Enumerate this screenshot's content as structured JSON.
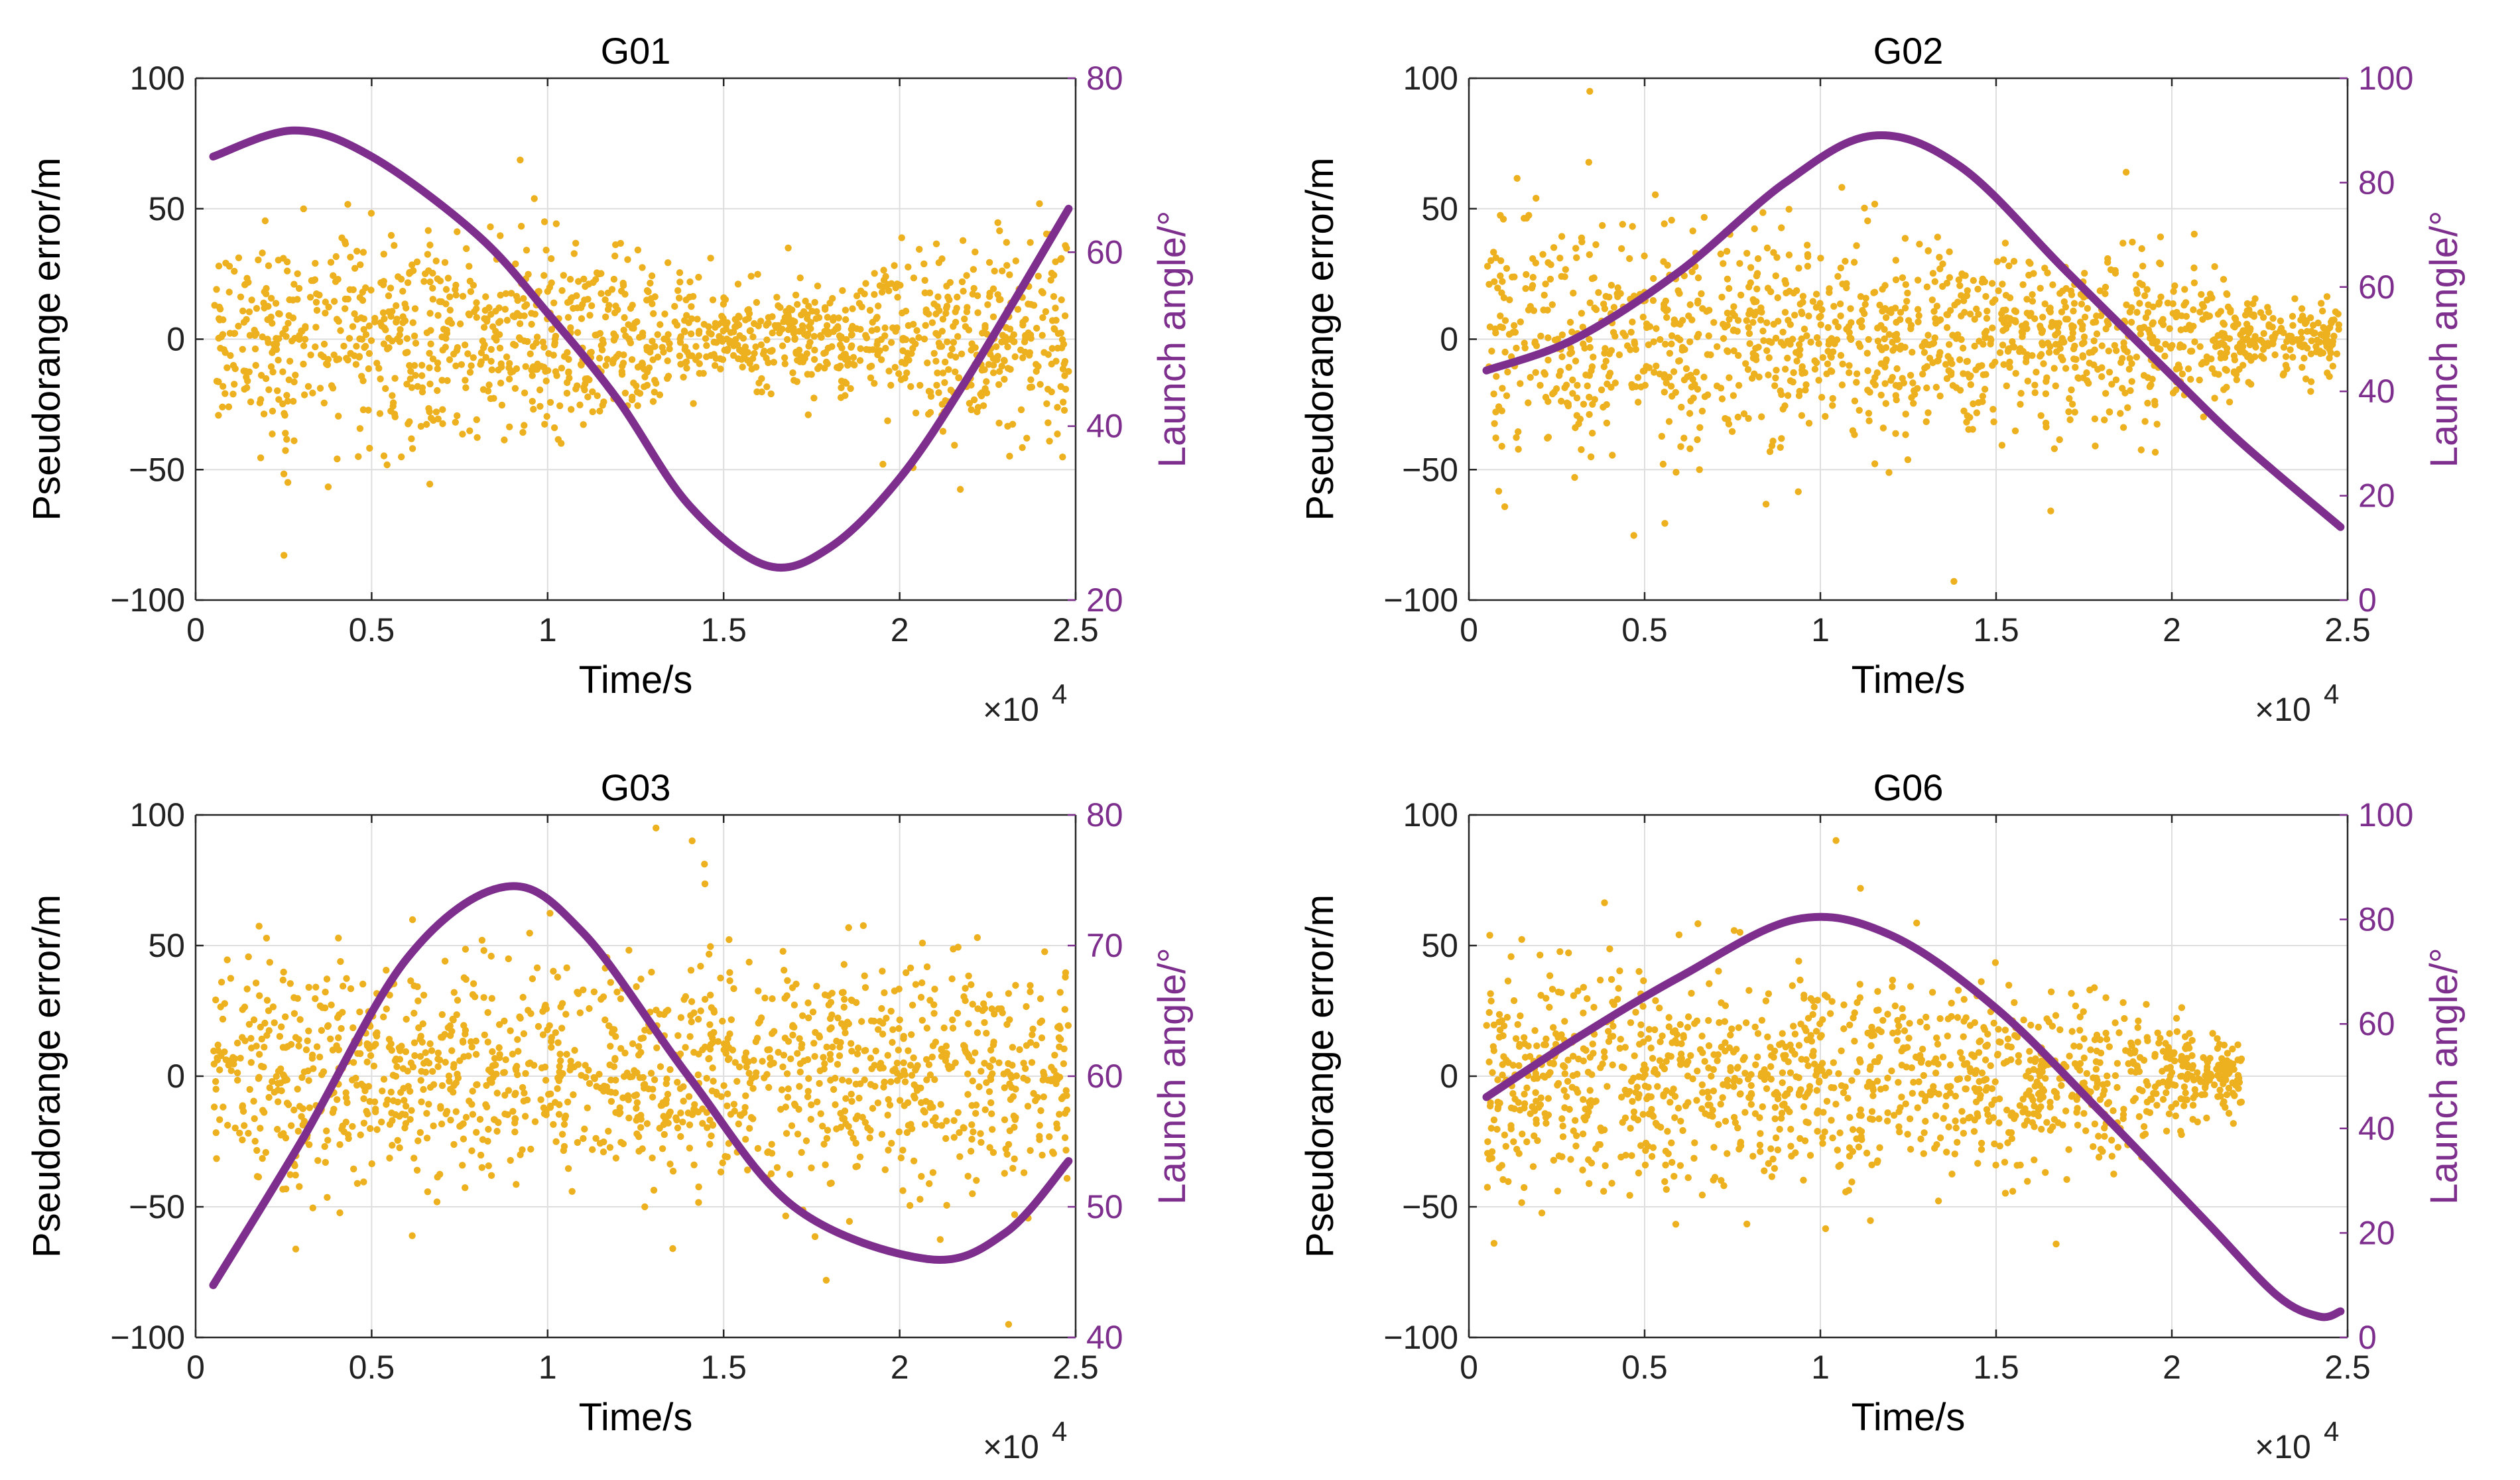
{
  "colors": {
    "scatter": "#EDB120",
    "line": "#7E2F8E",
    "right_axis": "#7E2F8E",
    "grid": "#DEDEDE",
    "axis": "#262626"
  },
  "chart_data": [
    {
      "type": "scatter",
      "title": "G01",
      "xlabel": "Time/s",
      "ylabel": "Pseudorange error/m",
      "y2label": "Launch angle/°",
      "xlim": [
        0,
        2.5
      ],
      "x_scale": "×10",
      "x_exponent": "4",
      "ylim": [
        -100,
        100
      ],
      "y2lim": [
        20,
        80
      ],
      "xticks": [
        "0",
        "0.5",
        "1",
        "1.5",
        "2",
        "2.5"
      ],
      "yticks": [
        "−100",
        "−50",
        "0",
        "50",
        "100"
      ],
      "y2ticks": [
        "20",
        "40",
        "60",
        "80"
      ],
      "grid": true,
      "series": [
        {
          "name": "Pseudorange error",
          "kind": "scatter",
          "x_range": [
            0.05,
            2.48
          ],
          "n_points": 1400,
          "spread_profile": [
            [
              0.05,
              20
            ],
            [
              0.5,
              20
            ],
            [
              0.9,
              18
            ],
            [
              1.3,
              16
            ],
            [
              1.4,
              10
            ],
            [
              1.9,
              10
            ],
            [
              2.0,
              18
            ],
            [
              2.48,
              20
            ]
          ]
        },
        {
          "name": "Launch angle",
          "kind": "line",
          "axis": "right",
          "x": [
            0.05,
            0.28,
            0.5,
            0.8,
            1.0,
            1.2,
            1.4,
            1.62,
            1.8,
            2.0,
            2.2,
            2.48
          ],
          "y": [
            71,
            74,
            71,
            62,
            53,
            43,
            31,
            24,
            26,
            34,
            46,
            65
          ]
        }
      ]
    },
    {
      "type": "scatter",
      "title": "G02",
      "xlabel": "Time/s",
      "ylabel": "Pseudorange error/m",
      "y2label": "Launch angle/°",
      "xlim": [
        0,
        2.5
      ],
      "x_scale": "×10",
      "x_exponent": "4",
      "ylim": [
        -100,
        100
      ],
      "y2lim": [
        0,
        100
      ],
      "xticks": [
        "0",
        "0.5",
        "1",
        "1.5",
        "2",
        "2.5"
      ],
      "yticks": [
        "−100",
        "−50",
        "0",
        "50",
        "100"
      ],
      "y2ticks": [
        "0",
        "20",
        "40",
        "60",
        "80",
        "100"
      ],
      "grid": true,
      "series": [
        {
          "name": "Pseudorange error",
          "kind": "scatter",
          "x_range": [
            0.05,
            2.48
          ],
          "n_points": 1400,
          "spread_profile": [
            [
              0.05,
              22
            ],
            [
              0.5,
              21
            ],
            [
              1.0,
              19
            ],
            [
              1.5,
              18
            ],
            [
              2.1,
              17
            ],
            [
              2.2,
              8
            ],
            [
              2.48,
              6
            ]
          ]
        },
        {
          "name": "Launch angle",
          "kind": "line",
          "axis": "right",
          "x": [
            0.05,
            0.3,
            0.6,
            0.9,
            1.15,
            1.4,
            1.7,
            2.0,
            2.2,
            2.48
          ],
          "y": [
            44,
            50,
            63,
            80,
            89,
            83,
            63,
            43,
            30,
            14
          ]
        }
      ]
    },
    {
      "type": "scatter",
      "title": "G03",
      "xlabel": "Time/s",
      "ylabel": "Pseudorange error/m",
      "y2label": "Launch angle/°",
      "xlim": [
        0,
        2.5
      ],
      "x_scale": "×10",
      "x_exponent": "4",
      "ylim": [
        -100,
        100
      ],
      "y2lim": [
        40,
        80
      ],
      "xticks": [
        "0",
        "0.5",
        "1",
        "1.5",
        "2",
        "2.5"
      ],
      "yticks": [
        "−100",
        "−50",
        "0",
        "50",
        "100"
      ],
      "y2ticks": [
        "40",
        "50",
        "60",
        "70",
        "80"
      ],
      "grid": true,
      "series": [
        {
          "name": "Pseudorange error",
          "kind": "scatter",
          "x_range": [
            0.05,
            2.48
          ],
          "n_points": 1400,
          "spread_profile": [
            [
              0.05,
              22
            ],
            [
              1.0,
              21
            ],
            [
              2.0,
              21
            ],
            [
              2.48,
              21
            ]
          ]
        },
        {
          "name": "Launch angle",
          "kind": "line",
          "axis": "right",
          "x": [
            0.05,
            0.3,
            0.6,
            0.88,
            1.1,
            1.4,
            1.7,
            2.08,
            2.3,
            2.48
          ],
          "y": [
            44,
            55,
            69,
            74.5,
            71,
            60,
            50,
            46,
            48,
            53.5
          ]
        }
      ]
    },
    {
      "type": "scatter",
      "title": "G06",
      "xlabel": "Time/s",
      "ylabel": "Pseudorange error/m",
      "y2label": "Launch angle/°",
      "xlim": [
        0,
        2.5
      ],
      "x_scale": "×10",
      "x_exponent": "4",
      "ylim": [
        -100,
        100
      ],
      "y2lim": [
        0,
        100
      ],
      "xticks": [
        "0",
        "0.5",
        "1",
        "1.5",
        "2",
        "2.5"
      ],
      "yticks": [
        "−100",
        "−50",
        "0",
        "50",
        "100"
      ],
      "y2ticks": [
        "0",
        "20",
        "40",
        "60",
        "80",
        "100"
      ],
      "grid": true,
      "series": [
        {
          "name": "Pseudorange error",
          "kind": "scatter",
          "x_range": [
            0.05,
            2.2
          ],
          "n_points": 1300,
          "spread_profile": [
            [
              0.05,
              22
            ],
            [
              0.5,
              20
            ],
            [
              1.0,
              19
            ],
            [
              1.5,
              18
            ],
            [
              1.9,
              16
            ],
            [
              2.0,
              9
            ],
            [
              2.2,
              6
            ]
          ]
        },
        {
          "name": "Launch angle",
          "kind": "line",
          "axis": "right",
          "x": [
            0.05,
            0.3,
            0.6,
            0.93,
            1.2,
            1.5,
            1.8,
            2.1,
            2.3,
            2.42,
            2.48
          ],
          "y": [
            46,
            57,
            69,
            80,
            77,
            63,
            43,
            22,
            8,
            4,
            5
          ]
        }
      ]
    }
  ]
}
